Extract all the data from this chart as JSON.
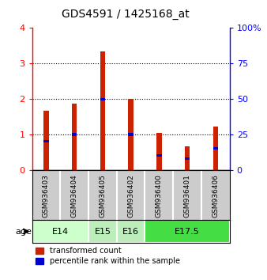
{
  "title": "GDS4591 / 1425168_at",
  "samples": [
    "GSM936403",
    "GSM936404",
    "GSM936405",
    "GSM936402",
    "GSM936400",
    "GSM936401",
    "GSM936406"
  ],
  "transformed_counts": [
    1.67,
    1.87,
    3.33,
    2.0,
    1.05,
    0.67,
    1.23
  ],
  "percentile_ranks_pct": [
    20,
    25,
    50,
    25,
    10,
    8,
    15
  ],
  "age_groups": [
    {
      "label": "E14",
      "span": [
        0,
        1
      ],
      "color": "#ccffcc"
    },
    {
      "label": "E15",
      "span": [
        2,
        2
      ],
      "color": "#bbeebb"
    },
    {
      "label": "E16",
      "span": [
        3,
        3
      ],
      "color": "#bbeebb"
    },
    {
      "label": "E17.5",
      "span": [
        4,
        6
      ],
      "color": "#44dd44"
    }
  ],
  "ylim_left": [
    0,
    4
  ],
  "ylim_right": [
    0,
    100
  ],
  "yticks_left": [
    0,
    1,
    2,
    3,
    4
  ],
  "yticks_right": [
    0,
    25,
    50,
    75,
    100
  ],
  "bar_color_red": "#cc2200",
  "bar_color_blue": "#0000cc",
  "bar_width": 0.18,
  "blue_marker_size": 0.07,
  "grid_color": "black",
  "bg_plot": "#ffffff",
  "bg_sample": "#cccccc",
  "legend_red": "transformed count",
  "legend_blue": "percentile rank within the sample",
  "age_label": "age"
}
